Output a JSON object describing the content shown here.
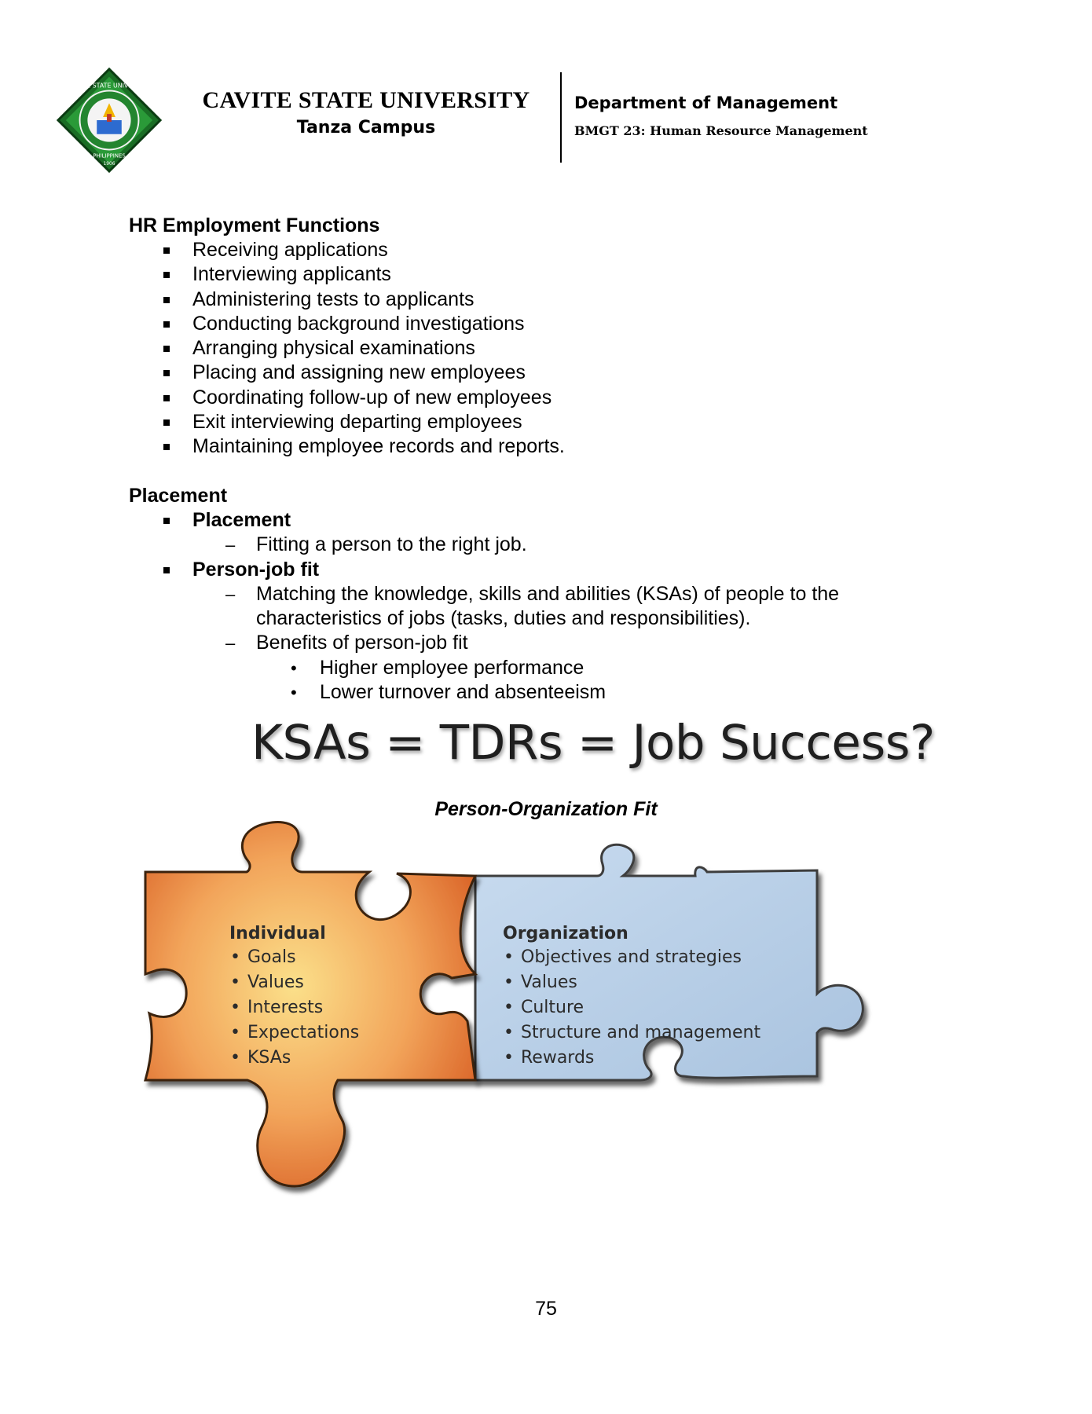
{
  "header": {
    "university": "CAVITE STATE UNIVERSITY",
    "campus": "Tanza Campus",
    "department": "Department of Management",
    "course": "BMGT 23: Human Resource Management",
    "logo_text": [
      "CAVITE STATE UNIVERSITY",
      "PHILIPPINES",
      "1906"
    ]
  },
  "hr_functions": {
    "title": "HR Employment Functions",
    "items": [
      "Receiving applications",
      "Interviewing applicants",
      "Administering tests to applicants",
      "Conducting background investigations",
      "Arranging physical examinations",
      "Placing and assigning new employees",
      "Coordinating follow-up of new employees",
      "Exit interviewing departing employees",
      "Maintaining employee records and reports."
    ]
  },
  "placement": {
    "title": "Placement",
    "placement_term": "Placement",
    "placement_def": "Fitting a person to the right job.",
    "pjf_term": "Person-job fit",
    "pjf_def": "Matching the knowledge, skills and abilities (KSAs) of people to the characteristics of jobs (tasks, duties and responsibilities).",
    "benefits_label": "Benefits of person-job fit",
    "benefits": [
      "Higher employee performance",
      "Lower turnover and absenteeism"
    ]
  },
  "equation": "KSAs = TDRs = Job Success?",
  "figure": {
    "caption": "Person-Organization Fit",
    "individual": {
      "title": "Individual",
      "items": [
        "Goals",
        "Values",
        "Interests",
        "Expectations",
        "KSAs"
      ]
    },
    "organization": {
      "title": "Organization",
      "items": [
        "Objectives and strategies",
        "Values",
        "Culture",
        "Structure and management",
        "Rewards"
      ]
    },
    "colors": {
      "individual": "#ef9a55",
      "organization": "#b4cde6",
      "logo_green": "#1e8b2e"
    }
  },
  "page_number": "75"
}
